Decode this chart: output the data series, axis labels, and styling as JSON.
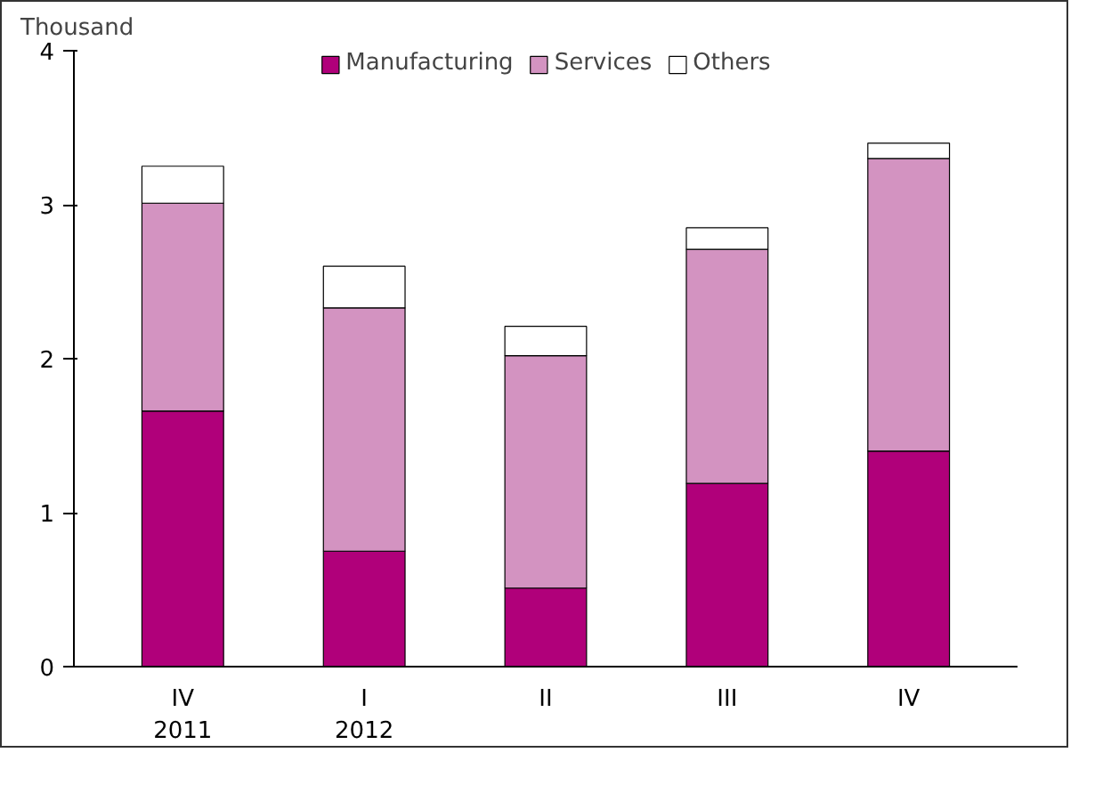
{
  "chart_data": {
    "type": "bar",
    "stacked": true,
    "ylabel": "Thousand",
    "categories": [
      "IV\n2011",
      "I\n2012",
      "II",
      "III",
      "IV"
    ],
    "ylim": [
      0,
      4
    ],
    "yticks": [
      0,
      1,
      2,
      3,
      4
    ],
    "legend": "top",
    "grid": false,
    "series": [
      {
        "name": "Manufacturing",
        "color": "#b0007a",
        "values": [
          1.66,
          0.75,
          0.51,
          1.19,
          1.4
        ]
      },
      {
        "name": "Services",
        "color": "#d393c1",
        "values": [
          1.35,
          1.58,
          1.51,
          1.52,
          1.9
        ]
      },
      {
        "name": "Others",
        "color": "#ffffff",
        "values": [
          0.24,
          0.27,
          0.19,
          0.14,
          0.1
        ]
      }
    ]
  }
}
